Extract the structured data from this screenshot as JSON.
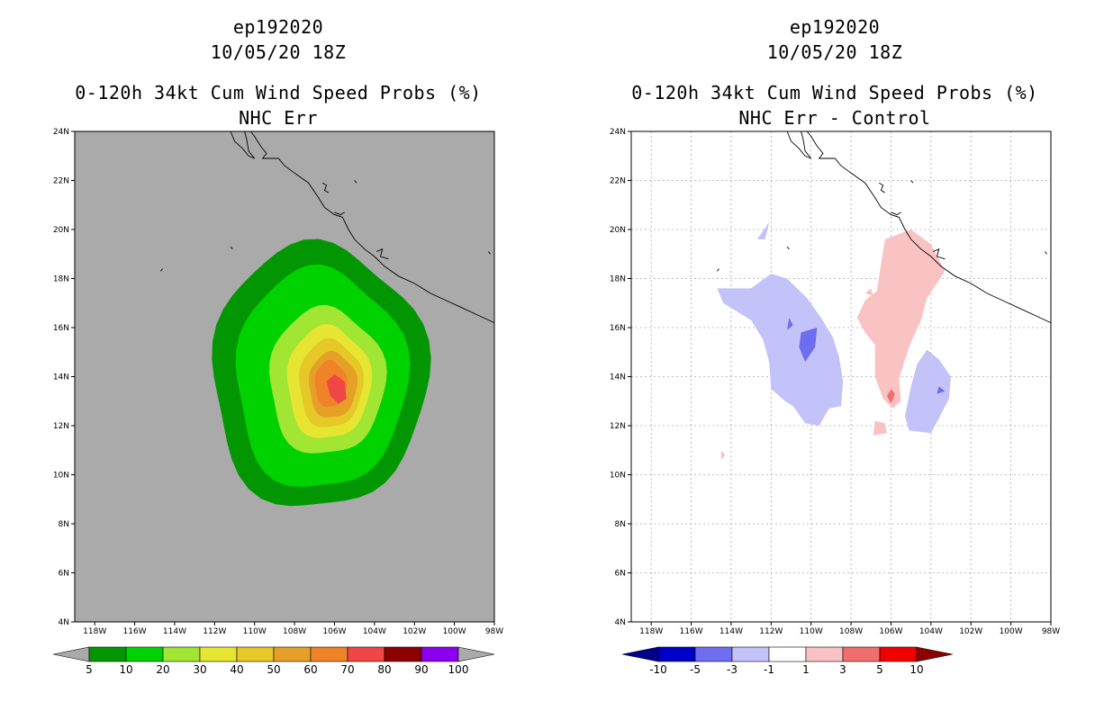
{
  "chart_data": [
    {
      "type": "heatmap",
      "storm_id": "ep192020",
      "datetime": "10/05/20 18Z",
      "title": "0-120h 34kt Cum Wind Speed Probs (%)",
      "subtitle": "NHC Err",
      "lat_range": [
        4,
        24
      ],
      "lon_range": [
        -119,
        -98
      ],
      "lat_ticks": [
        "4N",
        "6N",
        "8N",
        "10N",
        "12N",
        "14N",
        "16N",
        "18N",
        "20N",
        "22N",
        "24N"
      ],
      "lon_ticks": [
        "118W",
        "116W",
        "114W",
        "112W",
        "110W",
        "108W",
        "106W",
        "104W",
        "102W",
        "100W",
        "98W"
      ],
      "grid": false,
      "background_color": "#aaaaaa",
      "contour_levels": [
        5,
        10,
        20,
        30,
        40,
        50,
        60,
        70,
        80,
        90,
        100
      ],
      "colorbar": {
        "labels": [
          "5",
          "10",
          "20",
          "30",
          "40",
          "50",
          "60",
          "70",
          "80",
          "90",
          "100"
        ],
        "colors": [
          "#039603",
          "#00d200",
          "#a0e632",
          "#e6e632",
          "#e6c828",
          "#e6a028",
          "#f08228",
          "#f04646",
          "#8c0000",
          "#8c00f0"
        ],
        "below_color": "#aaaaaa",
        "above_color": "#aaaaaa"
      },
      "peak_value_range": "70-80",
      "peak_location": "13.5N 105.8W"
    },
    {
      "type": "heatmap",
      "storm_id": "ep192020",
      "datetime": "10/05/20 18Z",
      "title": "0-120h 34kt Cum Wind Speed Probs (%)",
      "subtitle": "NHC Err - Control",
      "lat_range": [
        4,
        24
      ],
      "lon_range": [
        -119,
        -98
      ],
      "lat_ticks": [
        "4N",
        "6N",
        "8N",
        "10N",
        "12N",
        "14N",
        "16N",
        "18N",
        "20N",
        "22N",
        "24N"
      ],
      "lon_ticks": [
        "118W",
        "116W",
        "114W",
        "112W",
        "110W",
        "108W",
        "106W",
        "104W",
        "102W",
        "100W",
        "98W"
      ],
      "grid": true,
      "background_color": "#ffffff",
      "contour_levels": [
        -10,
        -5,
        -3,
        -1,
        1,
        3,
        5,
        10
      ],
      "colorbar": {
        "labels": [
          "-10",
          "-5",
          "-3",
          "-1",
          "1",
          "3",
          "5",
          "10"
        ],
        "colors": [
          "#0000c8",
          "#6e6ef0",
          "#c3c3fa",
          "#ffffff",
          "#fac3c3",
          "#f06e6e",
          "#f00000"
        ],
        "below_color": "#00008c",
        "above_color": "#8c0000"
      },
      "negative_region": "west of track (112W-108W, 12N-19N)",
      "positive_region": "along/east of track (107W-103W, 12N-19.5N)"
    }
  ]
}
